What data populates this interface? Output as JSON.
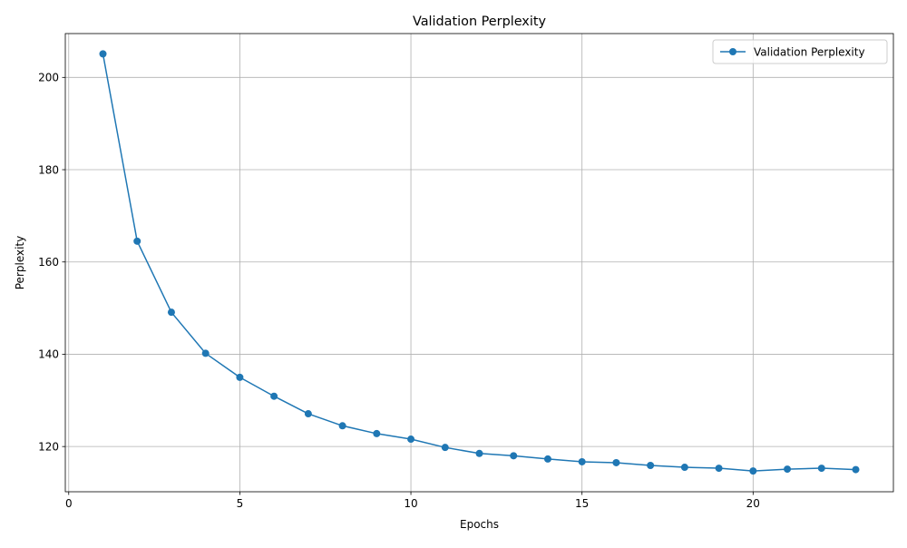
{
  "chart_data": {
    "type": "line",
    "title": "Validation Perplexity",
    "xlabel": "Epochs",
    "ylabel": "Perplexity",
    "xlim": [
      -0.1,
      24.1
    ],
    "ylim": [
      110.2,
      209.5
    ],
    "xticks": [
      0,
      5,
      10,
      15,
      20
    ],
    "yticks": [
      120,
      140,
      160,
      180,
      200
    ],
    "grid": true,
    "legend_position": "top-right",
    "series": [
      {
        "name": "Validation Perplexity",
        "color": "#1f77b4",
        "marker": "circle",
        "x": [
          1,
          2,
          3,
          4,
          5,
          6,
          7,
          8,
          9,
          10,
          11,
          12,
          13,
          14,
          15,
          16,
          17,
          18,
          19,
          20,
          21,
          22,
          23
        ],
        "values": [
          205.1,
          164.5,
          149.1,
          140.2,
          135.0,
          130.9,
          127.1,
          124.5,
          122.8,
          121.6,
          119.8,
          118.5,
          118.0,
          117.3,
          116.7,
          116.5,
          115.9,
          115.5,
          115.3,
          114.7,
          115.1,
          115.3,
          115.0
        ]
      }
    ]
  }
}
